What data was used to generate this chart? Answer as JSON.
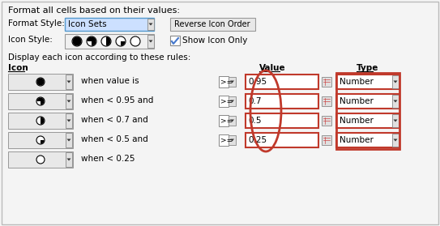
{
  "bg_color": "#f0f0f0",
  "border_color": "#a0a0a0",
  "title": "Format all cells based on their values:",
  "format_style_label": "Format Style:",
  "format_style_value": "Icon Sets",
  "icon_style_label": "Icon Style:",
  "reverse_btn": "Reverse Icon Order",
  "show_icon_only": "Show Icon Only",
  "display_label": "Display each icon according to these rules:",
  "icon_col_label": "Icon",
  "value_col_label": "Value",
  "type_col_label": "Type",
  "rows": [
    {
      "icon_fill": 1.0,
      "condition": "when value is",
      "op": ">=",
      "value": "0.95",
      "type": "Number"
    },
    {
      "icon_fill": 0.75,
      "condition": "when < 0.95 and",
      "op": ">=",
      "value": "0.7",
      "type": "Number"
    },
    {
      "icon_fill": 0.5,
      "condition": "when < 0.7 and",
      "op": ">=",
      "value": "0.5",
      "type": "Number"
    },
    {
      "icon_fill": 0.25,
      "condition": "when < 0.5 and",
      "op": ">=",
      "value": "0.25",
      "type": "Number"
    },
    {
      "icon_fill": 0.0,
      "condition": "when < 0.25",
      "op": null,
      "value": null,
      "type": null
    }
  ],
  "highlight_values": true,
  "highlight_type": true,
  "value_highlight_color": "#c0392b",
  "type_highlight_color": "#c0392b"
}
